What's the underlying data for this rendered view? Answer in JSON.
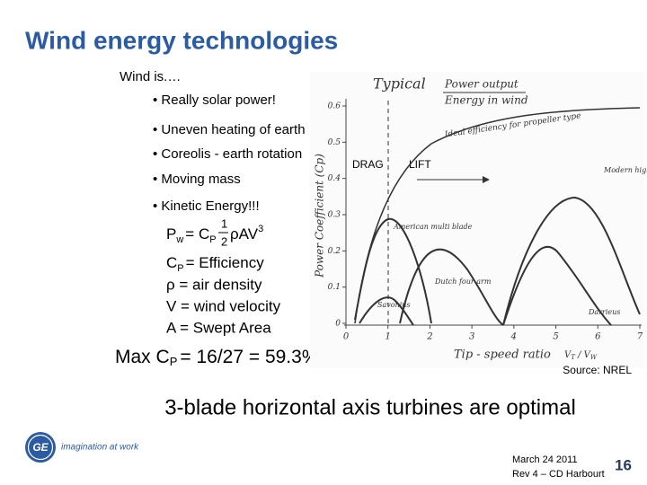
{
  "header": {
    "title": "Wind energy technologies"
  },
  "intro": "Wind is.…",
  "bullets": [
    "• Really solar power!",
    "• Uneven heating of earth",
    "• Coreolis - earth rotation",
    "• Moving mass",
    "• Kinetic Energy!!!"
  ],
  "formulas": [
    [
      "P",
      "w",
      "= C",
      "P",
      "1",
      "2",
      "ρAV",
      "3"
    ],
    [
      "C",
      "P",
      "= Efficiency"
    ],
    [
      "ρ = air density"
    ],
    [
      "V = wind velocity"
    ],
    [
      "A = Swept Area"
    ]
  ],
  "max_cp": [
    "Max C",
    "P",
    "= 16/27 = 59.3%"
  ],
  "figure": {
    "title": "Typical",
    "legend": [
      "Power output",
      "Energy in wind"
    ],
    "y_label": "Power Coefficient (Cp)",
    "x_label": "Tip - speed ratio",
    "x_ratio": [
      "V",
      "T",
      "V",
      "W"
    ],
    "xticks": [
      0,
      1,
      2,
      3,
      4,
      5,
      6,
      7
    ],
    "yticks": [
      0,
      0.1,
      0.2,
      0.3,
      0.4,
      0.5,
      0.6
    ],
    "xlim": [
      0,
      7
    ],
    "ylim": [
      0,
      0.6
    ],
    "drag": "DRAG",
    "lift": "LIFT",
    "curve_labels": [
      "Ideal efficiency for propeller type",
      "Modern high speed two-blade",
      "American multi blade",
      "Dutch four arm",
      "Savonius",
      "Darrieus"
    ],
    "source": "Source: NREL"
  },
  "conclusion": "3-blade horizontal axis turbines are optimal",
  "footer": {
    "logo": "GE",
    "tagline": "imagination at work",
    "date": "March 24 2011",
    "revision": "Rev 4 – CD Harbourt",
    "page": 16
  }
}
